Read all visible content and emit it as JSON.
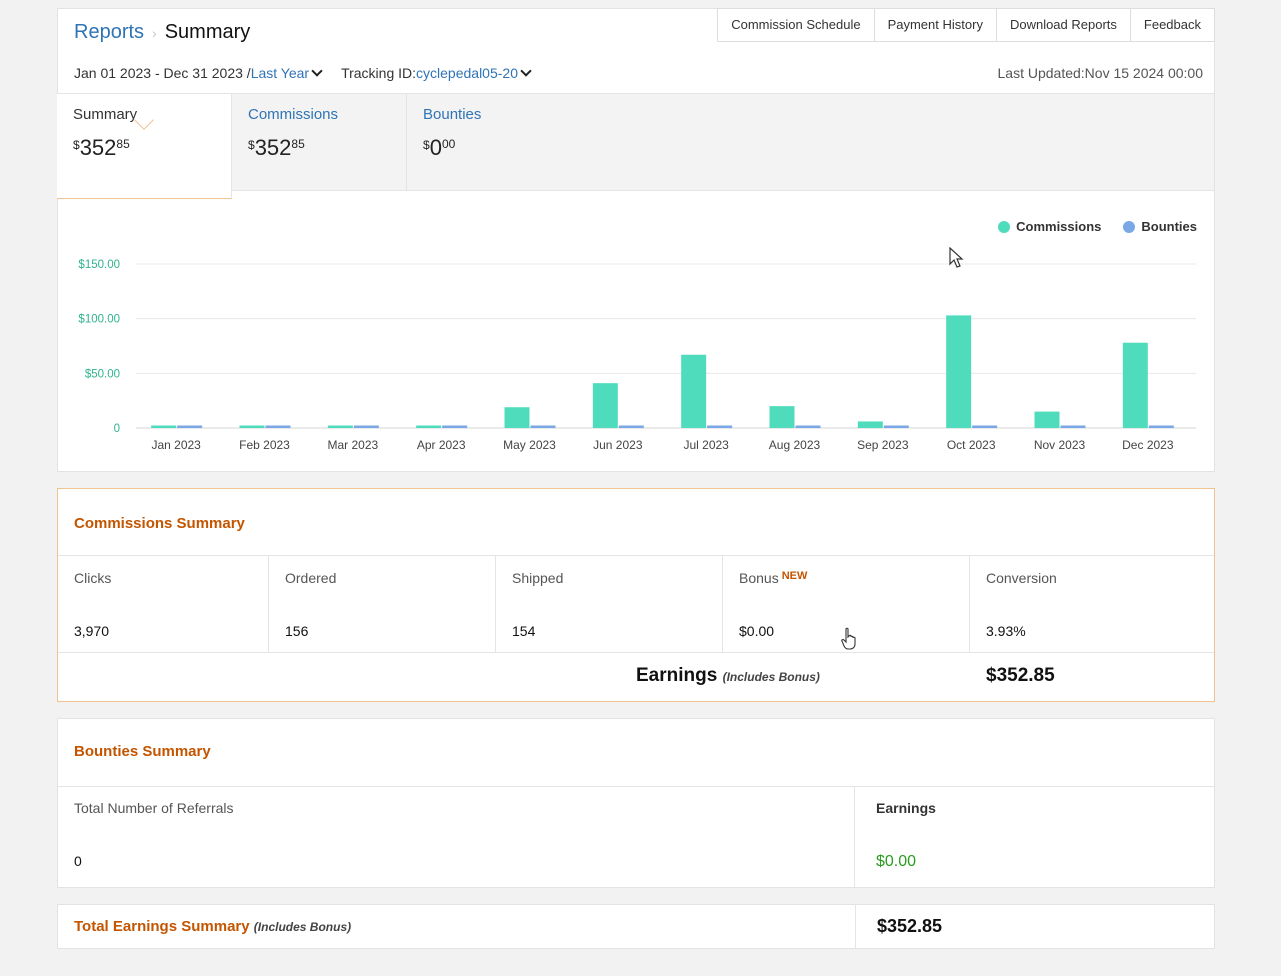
{
  "header": {
    "breadcrumb_root": "Reports",
    "breadcrumb_current": "Summary",
    "top_links": [
      "Commission Schedule",
      "Payment History",
      "Download Reports",
      "Feedback"
    ],
    "date_range": "Jan 01 2023 - Dec 31 2023 /",
    "date_preset": "Last Year",
    "tracking_label": "Tracking ID:",
    "tracking_id": "cyclepedal05-20",
    "last_updated": "Last Updated:Nov 15 2024 00:00"
  },
  "tabs": [
    {
      "label": "Summary",
      "currency": "$",
      "whole": "352",
      "cents": "85"
    },
    {
      "label": "Commissions",
      "currency": "$",
      "whole": "352",
      "cents": "85"
    },
    {
      "label": "Bounties",
      "currency": "$",
      "whole": "0",
      "cents": "00"
    }
  ],
  "chart_data": {
    "type": "bar",
    "categories": [
      "Jan 2023",
      "Feb 2023",
      "Mar 2023",
      "Apr 2023",
      "May 2023",
      "Jun 2023",
      "Jul 2023",
      "Aug 2023",
      "Sep 2023",
      "Oct 2023",
      "Nov 2023",
      "Dec 2023"
    ],
    "series": [
      {
        "name": "Commissions",
        "color": "#4fdcbc",
        "values": [
          1,
          1,
          1,
          1,
          19,
          41,
          67,
          20,
          6,
          103,
          15,
          78
        ]
      },
      {
        "name": "Bounties",
        "color": "#7aa7e6",
        "values": [
          1,
          1,
          1,
          1,
          1,
          1,
          1,
          1,
          1,
          1,
          1,
          1
        ]
      }
    ],
    "y_ticks": [
      "0",
      "$50.00",
      "$100.00",
      "$150.00"
    ],
    "ylim": [
      0,
      150
    ],
    "grid": true,
    "legend": "top-right"
  },
  "commissions_summary": {
    "title": "Commissions Summary",
    "cells": [
      {
        "label": "Clicks",
        "value": "3,970"
      },
      {
        "label": "Ordered",
        "value": "156"
      },
      {
        "label": "Shipped",
        "value": "154"
      },
      {
        "label": "Bonus",
        "badge": "NEW",
        "value": "$0.00"
      },
      {
        "label": "Conversion",
        "value": "3.93%"
      }
    ],
    "earnings_label": "Earnings",
    "earnings_note": "(Includes Bonus)",
    "earnings_value": "$352.85"
  },
  "bounties_summary": {
    "title": "Bounties Summary",
    "referrals_label": "Total Number of Referrals",
    "referrals_value": "0",
    "earnings_label": "Earnings",
    "earnings_value": "$0.00",
    "earnings_color": "#2a9d1f"
  },
  "total_summary": {
    "title": "Total Earnings Summary",
    "note": "(Includes Bonus)",
    "value": "$352.85"
  }
}
